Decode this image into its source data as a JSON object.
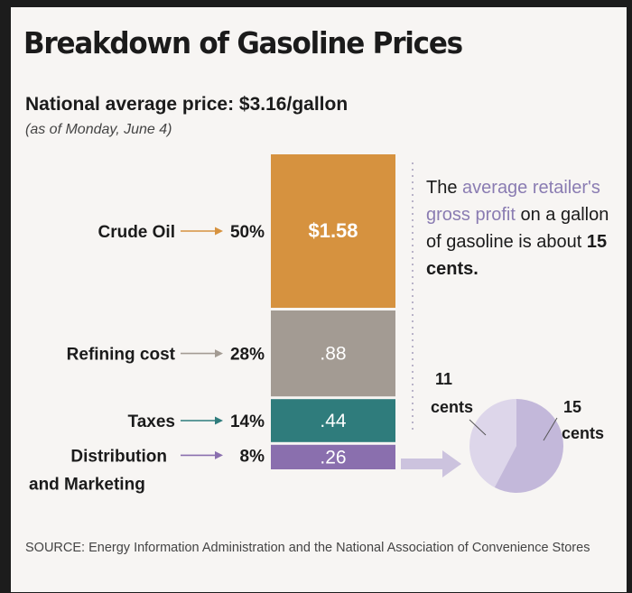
{
  "title": "Breakdown of Gasoline Prices",
  "subtitle": "National average price: $3.16/gallon",
  "as_of": "(as of Monday, June 4)",
  "note": {
    "pre": "The ",
    "highlight": "average retailer's gross profit",
    "mid": " on a gallon of gasoline is about ",
    "bold": "15 cents."
  },
  "source": "SOURCE: Energy Information Administration and the National Association of Convenience Stores",
  "chart_data": [
    {
      "type": "bar",
      "title": "Breakdown of Gasoline Prices",
      "subtitle": "National average price: $3.16/gallon",
      "stacked": true,
      "total": 3.16,
      "unit": "$/gallon",
      "segments": [
        {
          "name": "Crude Oil",
          "percent": 50,
          "percent_label": "50%",
          "value": 1.58,
          "value_label": "$1.58",
          "color": "#d6923f"
        },
        {
          "name": "Refining cost",
          "percent": 28,
          "percent_label": "28%",
          "value": 0.88,
          "value_label": ".88",
          "color": "#a39b93"
        },
        {
          "name": "Taxes",
          "percent": 14,
          "percent_label": "14%",
          "value": 0.44,
          "value_label": ".44",
          "color": "#2f7c7c"
        },
        {
          "name": "Distribution and Marketing",
          "name_lines": [
            "Distribution",
            "and Marketing"
          ],
          "percent": 8,
          "percent_label": "8%",
          "value": 0.26,
          "value_label": ".26",
          "color": "#8a6fae"
        }
      ]
    },
    {
      "type": "pie",
      "title": "Distribution and Marketing",
      "slices": [
        {
          "label_lines": [
            "11",
            "cents"
          ],
          "value": 11,
          "color": "#ddd6ea"
        },
        {
          "label_lines": [
            "15",
            "cents"
          ],
          "value": 15,
          "color": "#c3b8da"
        }
      ]
    }
  ]
}
